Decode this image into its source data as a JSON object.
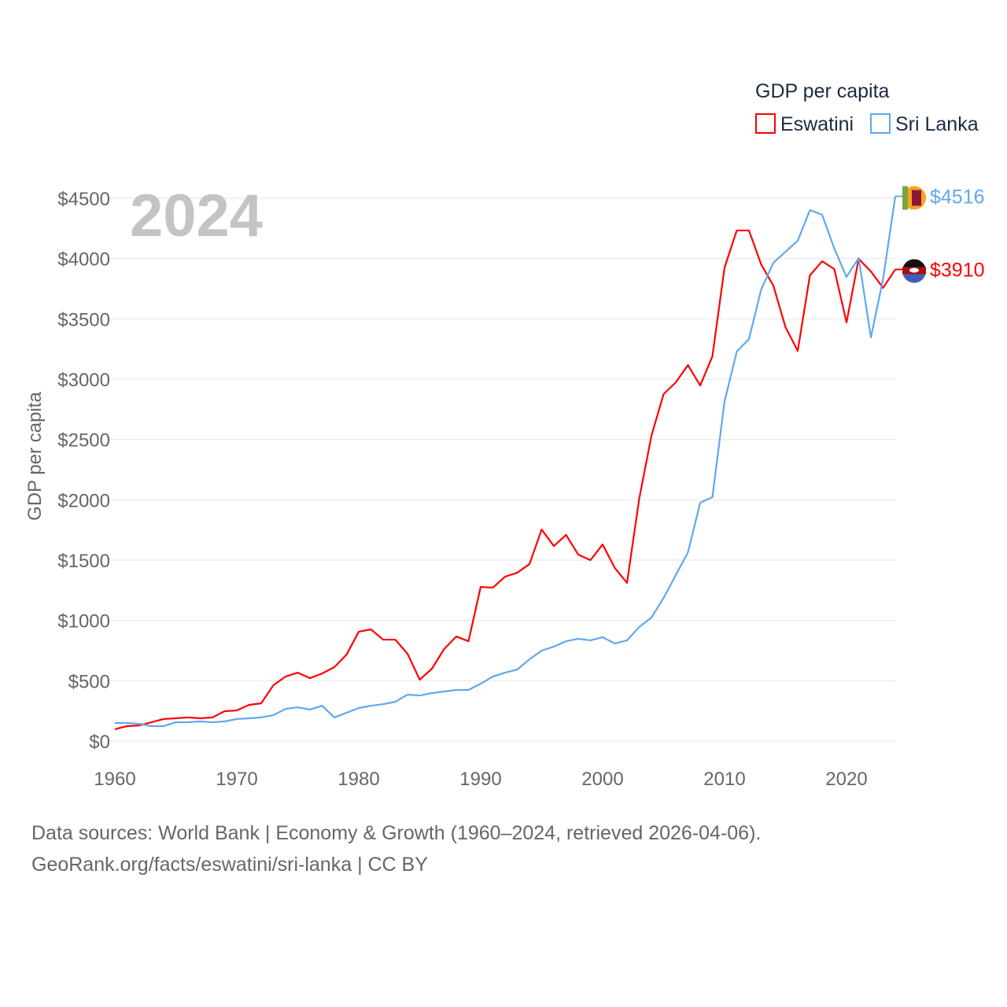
{
  "chart_data": {
    "type": "line",
    "title": "GDP per capita",
    "ylabel": "GDP per capita",
    "xlabel": "",
    "year_label": "2024",
    "xlim": [
      1960,
      2024
    ],
    "ylim": [
      0,
      4500
    ],
    "x_ticks": [
      1960,
      1970,
      1980,
      1990,
      2000,
      2010,
      2020
    ],
    "y_ticks": [
      0,
      500,
      1000,
      1500,
      2000,
      2500,
      3000,
      3500,
      4000,
      4500
    ],
    "y_tick_labels": [
      "$0",
      "$500",
      "$1000",
      "$1500",
      "$2000",
      "$2500",
      "$3000",
      "$3500",
      "$4000",
      "$4500"
    ],
    "grid": true,
    "legend_position": "top-right",
    "x": [
      1960,
      1961,
      1962,
      1963,
      1964,
      1965,
      1966,
      1967,
      1968,
      1969,
      1970,
      1971,
      1972,
      1973,
      1974,
      1975,
      1976,
      1977,
      1978,
      1979,
      1980,
      1981,
      1982,
      1983,
      1984,
      1985,
      1986,
      1987,
      1988,
      1989,
      1990,
      1991,
      1992,
      1993,
      1994,
      1995,
      1996,
      1997,
      1998,
      1999,
      2000,
      2001,
      2002,
      2003,
      2004,
      2005,
      2006,
      2007,
      2008,
      2009,
      2010,
      2011,
      2012,
      2013,
      2014,
      2015,
      2016,
      2017,
      2018,
      2019,
      2020,
      2021,
      2022,
      2023,
      2024
    ],
    "series": [
      {
        "name": "Eswatini",
        "color": "#ff0000",
        "end_label": "$3910",
        "values": [
          98,
          124,
          130,
          156,
          183,
          189,
          196,
          189,
          196,
          248,
          254,
          300,
          313,
          463,
          535,
          567,
          522,
          561,
          613,
          717,
          907,
          926,
          841,
          841,
          724,
          509,
          600,
          763,
          867,
          828,
          1278,
          1272,
          1363,
          1396,
          1467,
          1754,
          1617,
          1709,
          1546,
          1500,
          1630,
          1435,
          1311,
          2009,
          2530,
          2876,
          2974,
          3117,
          2948,
          3189,
          3926,
          4233,
          4233,
          3952,
          3776,
          3431,
          3235,
          3861,
          3978,
          3913,
          3470,
          3998,
          3893,
          3757,
          3910
        ]
      },
      {
        "name": "Sri Lanka",
        "color": "#5fa8ee",
        "end_label": "$4516",
        "values": [
          150,
          150,
          143,
          124,
          124,
          156,
          156,
          163,
          156,
          163,
          183,
          189,
          196,
          215,
          267,
          280,
          261,
          293,
          196,
          235,
          274,
          293,
          306,
          326,
          385,
          378,
          398,
          411,
          424,
          424,
          476,
          535,
          567,
          593,
          678,
          750,
          783,
          828,
          848,
          835,
          861,
          809,
          835,
          946,
          1024,
          1187,
          1376,
          1565,
          1976,
          2022,
          2817,
          3228,
          3333,
          3743,
          3965,
          4057,
          4148,
          4402,
          4363,
          4083,
          3848,
          4004,
          3346,
          3830,
          4516
        ]
      }
    ]
  },
  "footer": {
    "line1": "Data sources: World Bank | Economy & Growth (1960–2024, retrieved 2026-04-06).",
    "line2": "GeoRank.org/facts/eswatini/sri-lanka | CC BY"
  }
}
